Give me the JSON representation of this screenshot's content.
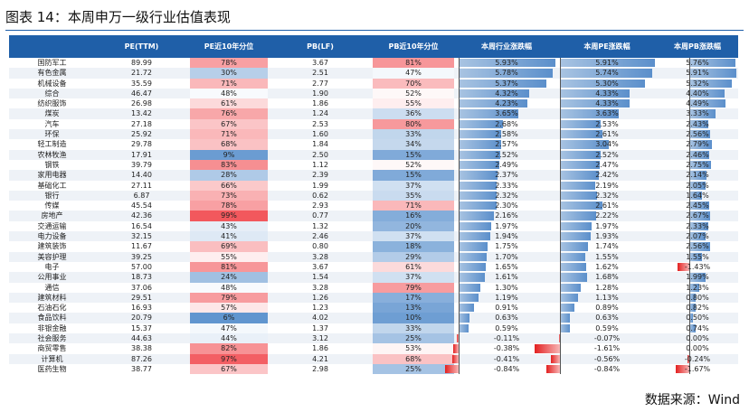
{
  "title": "图表 14：本周申万一级行业估值表现",
  "source": "数据来源：Wind",
  "columns": [
    "",
    "PE(TTM)",
    "PE近10年分位",
    "PB(LF)",
    "PB近10年分位",
    "本周行业涨跌幅",
    "本周PE涨跌幅",
    "本周PB涨跌幅"
  ],
  "rows": [
    {
      "name": "国防军工",
      "pe": "89.99",
      "pe_pct": "78%",
      "pb": "3.67",
      "pb_pct": "81%",
      "ind": "5.93%",
      "pe_chg": "5.91%",
      "pb_chg": "5.76%"
    },
    {
      "name": "有色金属",
      "pe": "21.72",
      "pe_pct": "30%",
      "pb": "2.51",
      "pb_pct": "47%",
      "ind": "5.78%",
      "pe_chg": "5.74%",
      "pb_chg": "5.91%"
    },
    {
      "name": "机械设备",
      "pe": "35.59",
      "pe_pct": "71%",
      "pb": "2.77",
      "pb_pct": "70%",
      "ind": "5.37%",
      "pe_chg": "5.30%",
      "pb_chg": "5.32%"
    },
    {
      "name": "综合",
      "pe": "46.47",
      "pe_pct": "48%",
      "pb": "1.90",
      "pb_pct": "52%",
      "ind": "4.32%",
      "pe_chg": "4.33%",
      "pb_chg": "4.40%"
    },
    {
      "name": "纺织服饰",
      "pe": "26.98",
      "pe_pct": "61%",
      "pb": "1.86",
      "pb_pct": "55%",
      "ind": "4.23%",
      "pe_chg": "4.33%",
      "pb_chg": "4.49%"
    },
    {
      "name": "煤炭",
      "pe": "13.42",
      "pe_pct": "76%",
      "pb": "1.24",
      "pb_pct": "36%",
      "ind": "3.65%",
      "pe_chg": "3.63%",
      "pb_chg": "3.33%"
    },
    {
      "name": "汽车",
      "pe": "27.18",
      "pe_pct": "67%",
      "pb": "2.53",
      "pb_pct": "80%",
      "ind": "2.68%",
      "pe_chg": "2.53%",
      "pb_chg": "2.43%"
    },
    {
      "name": "环保",
      "pe": "25.92",
      "pe_pct": "71%",
      "pb": "1.60",
      "pb_pct": "33%",
      "ind": "2.58%",
      "pe_chg": "2.61%",
      "pb_chg": "2.56%"
    },
    {
      "name": "轻工制造",
      "pe": "29.78",
      "pe_pct": "68%",
      "pb": "1.84",
      "pb_pct": "34%",
      "ind": "2.57%",
      "pe_chg": "3.04%",
      "pb_chg": "2.79%"
    },
    {
      "name": "农林牧渔",
      "pe": "17.91",
      "pe_pct": "9%",
      "pb": "2.50",
      "pb_pct": "15%",
      "ind": "2.52%",
      "pe_chg": "2.52%",
      "pb_chg": "2.46%"
    },
    {
      "name": "钢铁",
      "pe": "39.79",
      "pe_pct": "83%",
      "pb": "1.12",
      "pb_pct": "52%",
      "ind": "2.49%",
      "pe_chg": "2.47%",
      "pb_chg": "2.75%"
    },
    {
      "name": "家用电器",
      "pe": "14.40",
      "pe_pct": "28%",
      "pb": "2.39",
      "pb_pct": "15%",
      "ind": "2.37%",
      "pe_chg": "2.42%",
      "pb_chg": "2.14%"
    },
    {
      "name": "基础化工",
      "pe": "27.11",
      "pe_pct": "66%",
      "pb": "1.99",
      "pb_pct": "37%",
      "ind": "2.33%",
      "pe_chg": "2.19%",
      "pb_chg": "2.05%"
    },
    {
      "name": "银行",
      "pe": "6.87",
      "pe_pct": "73%",
      "pb": "0.62",
      "pb_pct": "35%",
      "ind": "2.32%",
      "pe_chg": "2.32%",
      "pb_chg": "1.64%"
    },
    {
      "name": "传媒",
      "pe": "45.54",
      "pe_pct": "78%",
      "pb": "2.93",
      "pb_pct": "71%",
      "ind": "2.30%",
      "pe_chg": "2.61%",
      "pb_chg": "2.45%"
    },
    {
      "name": "房地产",
      "pe": "42.36",
      "pe_pct": "99%",
      "pb": "0.77",
      "pb_pct": "16%",
      "ind": "2.16%",
      "pe_chg": "2.22%",
      "pb_chg": "2.67%"
    },
    {
      "name": "交通运输",
      "pe": "16.54",
      "pe_pct": "43%",
      "pb": "1.32",
      "pb_pct": "20%",
      "ind": "1.97%",
      "pe_chg": "1.97%",
      "pb_chg": "2.33%"
    },
    {
      "name": "电力设备",
      "pe": "32.15",
      "pe_pct": "41%",
      "pb": "2.46",
      "pb_pct": "37%",
      "ind": "1.94%",
      "pe_chg": "1.93%",
      "pb_chg": "2.07%"
    },
    {
      "name": "建筑装饰",
      "pe": "11.67",
      "pe_pct": "69%",
      "pb": "0.80",
      "pb_pct": "18%",
      "ind": "1.75%",
      "pe_chg": "1.74%",
      "pb_chg": "2.56%"
    },
    {
      "name": "美容护理",
      "pe": "39.25",
      "pe_pct": "55%",
      "pb": "3.28",
      "pb_pct": "29%",
      "ind": "1.70%",
      "pe_chg": "1.55%",
      "pb_chg": "1.55%"
    },
    {
      "name": "电子",
      "pe": "57.00",
      "pe_pct": "81%",
      "pb": "3.67",
      "pb_pct": "61%",
      "ind": "1.65%",
      "pe_chg": "1.62%",
      "pb_chg": "-1.43%"
    },
    {
      "name": "公用事业",
      "pe": "18.73",
      "pe_pct": "24%",
      "pb": "1.54",
      "pb_pct": "37%",
      "ind": "1.61%",
      "pe_chg": "1.68%",
      "pb_chg": "1.99%"
    },
    {
      "name": "通信",
      "pe": "37.06",
      "pe_pct": "48%",
      "pb": "3.28",
      "pb_pct": "79%",
      "ind": "1.30%",
      "pe_chg": "1.28%",
      "pb_chg": "1.23%"
    },
    {
      "name": "建筑材料",
      "pe": "29.51",
      "pe_pct": "79%",
      "pb": "1.26",
      "pb_pct": "17%",
      "ind": "1.19%",
      "pe_chg": "1.13%",
      "pb_chg": "0.80%"
    },
    {
      "name": "石油石化",
      "pe": "16.93",
      "pe_pct": "57%",
      "pb": "1.23",
      "pb_pct": "13%",
      "ind": "0.91%",
      "pe_chg": "0.89%",
      "pb_chg": "0.82%"
    },
    {
      "name": "食品饮料",
      "pe": "20.79",
      "pe_pct": "6%",
      "pb": "4.02",
      "pb_pct": "10%",
      "ind": "0.63%",
      "pe_chg": "0.63%",
      "pb_chg": "0.50%"
    },
    {
      "name": "非银金融",
      "pe": "15.37",
      "pe_pct": "47%",
      "pb": "1.37",
      "pb_pct": "33%",
      "ind": "0.59%",
      "pe_chg": "0.59%",
      "pb_chg": "0.74%"
    },
    {
      "name": "社会服务",
      "pe": "44.63",
      "pe_pct": "44%",
      "pb": "3.12",
      "pb_pct": "25%",
      "ind": "-0.11%",
      "pe_chg": "-0.07%",
      "pb_chg": "0.00%"
    },
    {
      "name": "商贸零售",
      "pe": "38.38",
      "pe_pct": "82%",
      "pb": "1.86",
      "pb_pct": "53%",
      "ind": "-0.38%",
      "pe_chg": "-1.61%",
      "pb_chg": "0.00%"
    },
    {
      "name": "计算机",
      "pe": "87.26",
      "pe_pct": "97%",
      "pb": "4.21",
      "pb_pct": "68%",
      "ind": "-0.41%",
      "pe_chg": "-0.56%",
      "pb_chg": "-0.24%"
    },
    {
      "name": "医药生物",
      "pe": "38.77",
      "pe_pct": "67%",
      "pb": "2.98",
      "pb_pct": "25%",
      "ind": "-0.84%",
      "pe_chg": "-0.84%",
      "pb_chg": "-1.67%"
    }
  ],
  "colors": {
    "header": "#1f5fa8",
    "low": "#4a86c8",
    "high": "#f2555a",
    "bar_pos": "#5b8fcb",
    "bar_neg": "#e32020"
  }
}
